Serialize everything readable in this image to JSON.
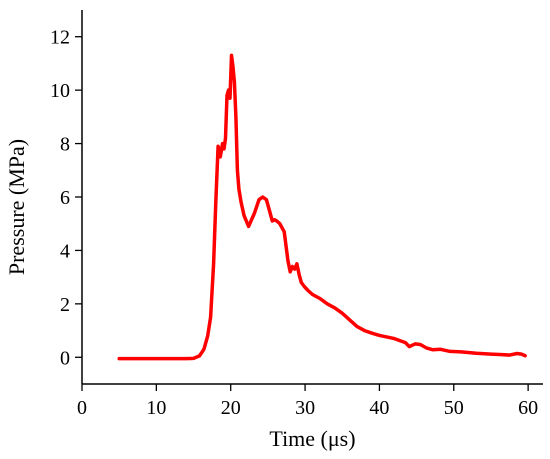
{
  "colors": {
    "series": "#ff0000",
    "axis": "#000000",
    "background": "#ffffff"
  },
  "chart_data": {
    "type": "line",
    "title": "",
    "xlabel": "Time (μs)",
    "ylabel": "Pressure (MPa)",
    "xlim": [
      0,
      62
    ],
    "ylim": [
      -1,
      13
    ],
    "x_ticks": [
      0,
      10,
      20,
      30,
      40,
      50,
      60
    ],
    "y_ticks": [
      0,
      2,
      4,
      6,
      8,
      10,
      12
    ],
    "x_tick_labels": [
      "0",
      "10",
      "20",
      "30",
      "40",
      "50",
      "60"
    ],
    "y_tick_labels": [
      "0",
      "2",
      "4",
      "6",
      "8",
      "10",
      "12"
    ],
    "grid": false,
    "legend": "none",
    "series": [
      {
        "x": [
          5,
          8,
          10,
          12,
          14,
          15,
          15.8,
          16.4,
          16.9,
          17.3,
          17.7,
          18.0,
          18.3,
          18.6,
          18.9,
          19.1,
          19.3,
          19.5,
          19.7,
          19.9,
          20.1,
          20.3,
          20.5,
          20.7,
          20.9,
          21.1,
          21.4,
          21.8,
          22.4,
          23.2,
          23.8,
          24.3,
          24.8,
          25.2,
          25.6,
          25.9,
          26.2,
          26.6,
          27.2,
          27.7,
          28.0,
          28.3,
          28.6,
          28.9,
          29.2,
          29.5,
          29.9,
          30.4,
          31.0,
          32.0,
          33.0,
          34.0,
          35.0,
          36.0,
          37.0,
          38.0,
          39.0,
          40.0,
          42.0,
          43.5,
          44.0,
          44.4,
          44.8,
          45.5,
          46.3,
          47.2,
          48.2,
          49.5,
          51.0,
          53.0,
          55.0,
          56.5,
          57.5,
          58.5,
          59.1,
          59.6
        ],
        "y": [
          -0.05,
          -0.05,
          -0.05,
          -0.05,
          -0.05,
          -0.04,
          0.05,
          0.3,
          0.8,
          1.5,
          3.5,
          5.8,
          7.9,
          7.5,
          8.0,
          7.8,
          8.2,
          9.8,
          10.0,
          9.7,
          11.3,
          10.9,
          10.3,
          9.0,
          7.0,
          6.3,
          5.8,
          5.3,
          4.9,
          5.4,
          5.9,
          6.0,
          5.9,
          5.5,
          5.1,
          5.15,
          5.1,
          5.0,
          4.7,
          3.6,
          3.2,
          3.4,
          3.3,
          3.5,
          3.1,
          2.8,
          2.65,
          2.5,
          2.35,
          2.2,
          2.0,
          1.85,
          1.65,
          1.4,
          1.15,
          1.0,
          0.9,
          0.82,
          0.7,
          0.55,
          0.4,
          0.45,
          0.5,
          0.48,
          0.35,
          0.28,
          0.3,
          0.22,
          0.2,
          0.15,
          0.12,
          0.1,
          0.08,
          0.14,
          0.12,
          0.06
        ]
      }
    ]
  }
}
